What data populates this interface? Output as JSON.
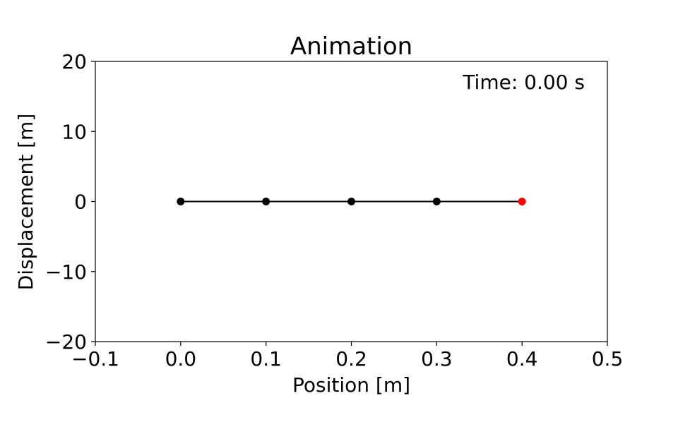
{
  "chart_data": {
    "type": "line",
    "title": "Animation",
    "xlabel": "Position [m]",
    "ylabel": "Displacement [m]",
    "xlim": [
      -0.1,
      0.5
    ],
    "ylim": [
      -20,
      20
    ],
    "xticks": [
      -0.1,
      0.0,
      0.1,
      0.2,
      0.3,
      0.4,
      0.5
    ],
    "xtick_labels": [
      "−0.1",
      "0.0",
      "0.1",
      "0.2",
      "0.3",
      "0.4",
      "0.5"
    ],
    "yticks": [
      -20,
      -10,
      0,
      10,
      20
    ],
    "ytick_labels": [
      "−20",
      "−10",
      "0",
      "10",
      "20"
    ],
    "grid": false,
    "annotation": "Time: 0.00 s",
    "series": [
      {
        "x": [
          0.0,
          0.1,
          0.2,
          0.3,
          0.4
        ],
        "y": [
          0,
          0,
          0,
          0,
          0
        ],
        "line_color": "#000000",
        "marker_colors": [
          "#000000",
          "#000000",
          "#000000",
          "#000000",
          "#ff0000"
        ]
      }
    ]
  }
}
